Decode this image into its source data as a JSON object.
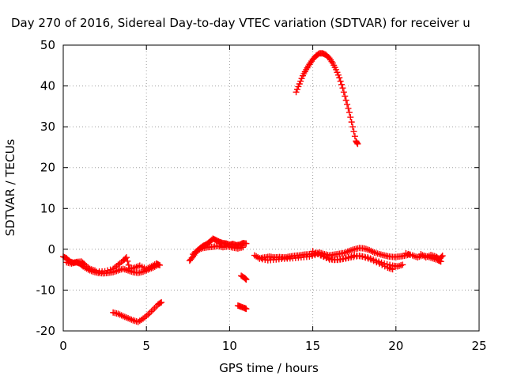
{
  "chart_data": {
    "type": "scatter",
    "title": "Day 270 of 2016, Sidereal Day-to-day VTEC variation (SDTVAR) for receiver u",
    "xlabel": "GPS time / hours",
    "ylabel": "SDTVAR / TECUs",
    "xlim": [
      0,
      25
    ],
    "ylim": [
      -20,
      50
    ],
    "xticks": [
      "0",
      "5",
      "10",
      "15",
      "20",
      "25"
    ],
    "yticks": [
      "-20",
      "-10",
      "0",
      "10",
      "20",
      "30",
      "40",
      "50"
    ],
    "grid": true,
    "marker": "plus",
    "color": "#ff0000",
    "series": [
      {
        "points": [
          [
            0.0,
            -1.8
          ],
          [
            0.2,
            -2.2
          ],
          [
            0.4,
            -3.0
          ],
          [
            0.6,
            -3.3
          ],
          [
            0.8,
            -3.2
          ],
          [
            1.0,
            -3.5
          ],
          [
            1.2,
            -4.2
          ],
          [
            1.5,
            -5.0
          ],
          [
            1.8,
            -5.5
          ],
          [
            2.1,
            -5.8
          ],
          [
            2.4,
            -5.9
          ],
          [
            2.7,
            -5.8
          ],
          [
            3.0,
            -5.6
          ],
          [
            3.3,
            -5.2
          ],
          [
            3.6,
            -4.8
          ],
          [
            3.9,
            -5.2
          ],
          [
            4.2,
            -5.6
          ],
          [
            4.5,
            -5.8
          ],
          [
            4.8,
            -5.5
          ],
          [
            5.1,
            -5.0
          ],
          [
            5.4,
            -4.5
          ],
          [
            5.7,
            -3.8
          ]
        ]
      },
      {
        "points": [
          [
            2.0,
            -5.5
          ],
          [
            2.5,
            -5.4
          ],
          [
            3.0,
            -4.8
          ],
          [
            3.3,
            -3.8
          ],
          [
            3.6,
            -2.8
          ],
          [
            3.8,
            -2.0
          ],
          [
            4.0,
            -4.8
          ],
          [
            4.3,
            -4.5
          ],
          [
            4.6,
            -4.0
          ],
          [
            5.0,
            -4.8
          ],
          [
            5.3,
            -4.2
          ],
          [
            5.6,
            -3.5
          ],
          [
            5.8,
            -3.9
          ]
        ]
      },
      {
        "points": [
          [
            0.2,
            -3.2
          ],
          [
            0.5,
            -3.5
          ],
          [
            0.8,
            -3.1
          ],
          [
            1.1,
            -3.0
          ],
          [
            1.3,
            -3.8
          ],
          [
            1.6,
            -4.8
          ],
          [
            1.9,
            -5.2
          ]
        ]
      },
      {
        "points": [
          [
            3.0,
            -15.5
          ],
          [
            3.3,
            -15.8
          ],
          [
            3.6,
            -16.4
          ],
          [
            3.9,
            -16.9
          ],
          [
            4.2,
            -17.4
          ],
          [
            4.5,
            -17.8
          ],
          [
            4.8,
            -17.0
          ],
          [
            5.1,
            -16.0
          ],
          [
            5.4,
            -14.8
          ],
          [
            5.7,
            -13.5
          ],
          [
            5.9,
            -13.0
          ]
        ]
      },
      {
        "points": [
          [
            7.6,
            -2.8
          ],
          [
            7.8,
            -1.8
          ],
          [
            8.0,
            -0.6
          ],
          [
            8.2,
            0.2
          ],
          [
            8.4,
            0.8
          ],
          [
            8.6,
            1.2
          ],
          [
            8.8,
            1.8
          ],
          [
            9.0,
            2.6
          ],
          [
            9.2,
            2.2
          ],
          [
            9.4,
            1.8
          ],
          [
            9.6,
            1.5
          ],
          [
            9.8,
            1.4
          ],
          [
            10.0,
            1.1
          ],
          [
            10.2,
            1.3
          ],
          [
            10.4,
            1.0
          ],
          [
            10.6,
            1.1
          ],
          [
            10.8,
            1.5
          ],
          [
            11.0,
            1.4
          ]
        ]
      },
      {
        "points": [
          [
            7.8,
            -1.2
          ],
          [
            8.1,
            -0.2
          ],
          [
            8.4,
            0.3
          ],
          [
            8.7,
            0.5
          ],
          [
            9.0,
            0.6
          ],
          [
            9.3,
            0.8
          ],
          [
            9.6,
            0.5
          ],
          [
            9.9,
            0.7
          ],
          [
            10.2,
            0.4
          ],
          [
            10.5,
            0.2
          ],
          [
            10.8,
            0.5
          ]
        ]
      },
      {
        "points": [
          [
            10.7,
            -6.5
          ],
          [
            10.9,
            -7.0
          ],
          [
            11.0,
            -7.4
          ]
        ]
      },
      {
        "points": [
          [
            10.5,
            -13.8
          ],
          [
            10.7,
            -14.1
          ],
          [
            10.9,
            -14.4
          ],
          [
            11.0,
            -14.6
          ]
        ]
      },
      {
        "points": [
          [
            11.5,
            -1.5
          ],
          [
            11.8,
            -2.2
          ],
          [
            12.1,
            -2.0
          ],
          [
            12.4,
            -1.8
          ],
          [
            12.7,
            -2.0
          ],
          [
            13.0,
            -1.9
          ],
          [
            13.3,
            -2.0
          ],
          [
            13.6,
            -1.8
          ],
          [
            13.9,
            -1.6
          ],
          [
            14.2,
            -1.5
          ],
          [
            14.5,
            -1.3
          ],
          [
            14.8,
            -1.2
          ],
          [
            15.1,
            -1.1
          ],
          [
            15.4,
            -0.8
          ],
          [
            15.7,
            -1.2
          ],
          [
            16.0,
            -1.5
          ],
          [
            16.3,
            -1.3
          ],
          [
            16.6,
            -1.1
          ],
          [
            16.9,
            -0.9
          ],
          [
            17.2,
            -0.4
          ],
          [
            17.5,
            0.0
          ],
          [
            17.8,
            0.3
          ],
          [
            18.1,
            0.2
          ],
          [
            18.4,
            -0.2
          ],
          [
            18.7,
            -0.8
          ],
          [
            19.0,
            -1.2
          ],
          [
            19.3,
            -1.5
          ],
          [
            19.6,
            -1.8
          ],
          [
            19.9,
            -1.9
          ],
          [
            20.2,
            -1.8
          ],
          [
            20.5,
            -1.6
          ],
          [
            20.8,
            -1.3
          ]
        ]
      },
      {
        "points": [
          [
            11.8,
            -2.3
          ],
          [
            12.3,
            -2.7
          ],
          [
            12.8,
            -2.5
          ],
          [
            13.3,
            -2.3
          ],
          [
            13.8,
            -2.2
          ],
          [
            14.3,
            -2.0
          ],
          [
            14.8,
            -1.8
          ],
          [
            15.3,
            -1.2
          ],
          [
            15.8,
            -2.0
          ],
          [
            16.3,
            -2.6
          ],
          [
            16.8,
            -2.4
          ],
          [
            17.3,
            -2.0
          ],
          [
            17.8,
            -1.6
          ],
          [
            18.3,
            -2.0
          ],
          [
            18.8,
            -2.8
          ],
          [
            19.3,
            -3.5
          ],
          [
            19.8,
            -4.0
          ],
          [
            20.1,
            -4.2
          ],
          [
            20.4,
            -3.8
          ]
        ]
      },
      {
        "points": [
          [
            15.0,
            -0.5
          ],
          [
            15.5,
            -1.5
          ],
          [
            16.0,
            -2.5
          ],
          [
            16.5,
            -2.6
          ],
          [
            17.0,
            -2.2
          ],
          [
            17.5,
            -1.5
          ],
          [
            18.0,
            -1.8
          ],
          [
            18.5,
            -2.5
          ],
          [
            19.0,
            -3.5
          ],
          [
            19.5,
            -4.5
          ],
          [
            19.8,
            -4.9
          ]
        ]
      },
      {
        "points": [
          [
            20.6,
            -1.0
          ],
          [
            21.0,
            -1.5
          ],
          [
            21.3,
            -2.0
          ],
          [
            21.6,
            -1.5
          ],
          [
            21.9,
            -1.8
          ],
          [
            22.2,
            -2.2
          ],
          [
            22.5,
            -2.6
          ],
          [
            22.7,
            -3.0
          ]
        ]
      },
      {
        "points": [
          [
            21.5,
            -1.2
          ],
          [
            21.8,
            -2.0
          ],
          [
            22.1,
            -1.4
          ],
          [
            22.4,
            -1.8
          ],
          [
            22.6,
            -2.4
          ],
          [
            22.8,
            -1.6
          ]
        ]
      },
      {
        "points": [
          [
            14.0,
            38.5
          ],
          [
            14.2,
            40.5
          ],
          [
            14.4,
            42.5
          ],
          [
            14.6,
            44.0
          ],
          [
            14.8,
            45.3
          ],
          [
            15.0,
            46.5
          ],
          [
            15.2,
            47.4
          ],
          [
            15.4,
            48.0
          ],
          [
            15.6,
            48.0
          ],
          [
            15.8,
            47.6
          ],
          [
            16.0,
            46.8
          ],
          [
            16.2,
            45.6
          ],
          [
            16.4,
            44.0
          ],
          [
            16.6,
            42.0
          ],
          [
            16.8,
            39.5
          ],
          [
            17.0,
            36.5
          ],
          [
            17.2,
            33.5
          ],
          [
            17.4,
            30.0
          ],
          [
            17.6,
            26.5
          ],
          [
            17.7,
            25.8
          ]
        ]
      }
    ]
  }
}
